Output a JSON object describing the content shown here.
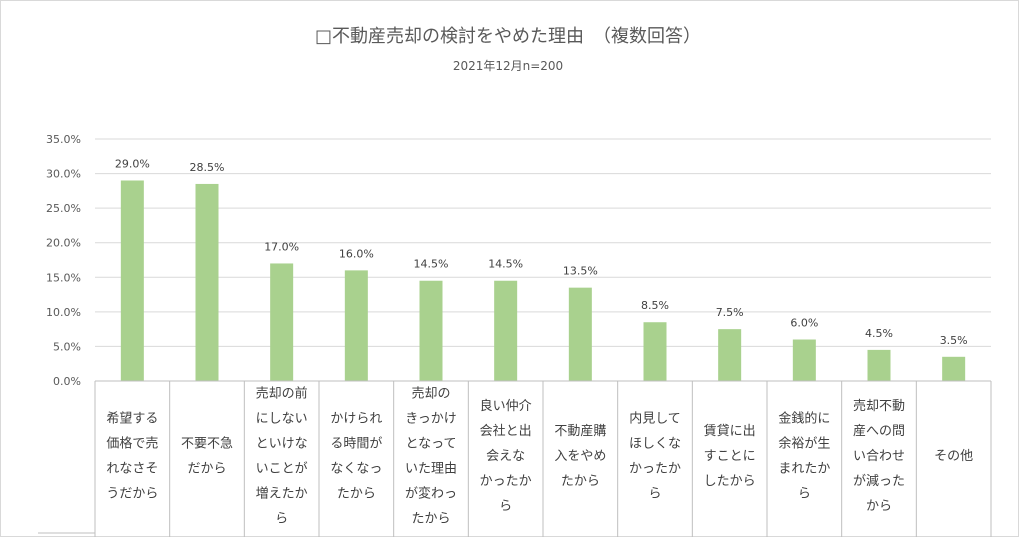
{
  "chart_data": {
    "type": "bar",
    "title": "□不動産売却の検討をやめた理由　（複数回答）",
    "subtitle": "2021年12月n=200",
    "xlabel": "",
    "ylabel": "",
    "ylim": [
      0,
      35
    ],
    "yticks": [
      "0.0%",
      "5.0%",
      "10.0%",
      "15.0%",
      "20.0%",
      "25.0%",
      "30.0%",
      "35.0%"
    ],
    "grid": true,
    "legend": "none",
    "bar_color": "#a9d18e",
    "categories": [
      [
        "希望する",
        "価格で売",
        "れなさそ",
        "うだから"
      ],
      [
        "不要不急",
        "だから"
      ],
      [
        "売却の前",
        "にしない",
        "といけな",
        "いことが",
        "増えたか",
        "ら"
      ],
      [
        "かけられ",
        "る時間が",
        "なくなっ",
        "たから"
      ],
      [
        "売却の",
        "きっかけ",
        "となって",
        "いた理由",
        "が変わっ",
        "たから"
      ],
      [
        "良い仲介",
        "会社と出",
        "会えな",
        "かったか",
        "ら"
      ],
      [
        "不動産購",
        "入をやめ",
        "たから"
      ],
      [
        "内見して",
        "ほしくな",
        "かったか",
        "ら"
      ],
      [
        "賃貸に出",
        "すことに",
        "したから"
      ],
      [
        "金銭的に",
        "余裕が生",
        "まれたか",
        "ら"
      ],
      [
        "売却不動",
        "産への問",
        "い合わせ",
        "が減った",
        "から"
      ],
      [
        "その他"
      ]
    ],
    "values": [
      29.0,
      28.5,
      17.0,
      16.0,
      14.5,
      14.5,
      13.5,
      8.5,
      7.5,
      6.0,
      4.5,
      3.5
    ],
    "data_labels": [
      "29.0%",
      "28.5%",
      "17.0%",
      "16.0%",
      "14.5%",
      "14.5%",
      "13.5%",
      "8.5%",
      "7.5%",
      "6.0%",
      "4.5%",
      "3.5%"
    ]
  }
}
